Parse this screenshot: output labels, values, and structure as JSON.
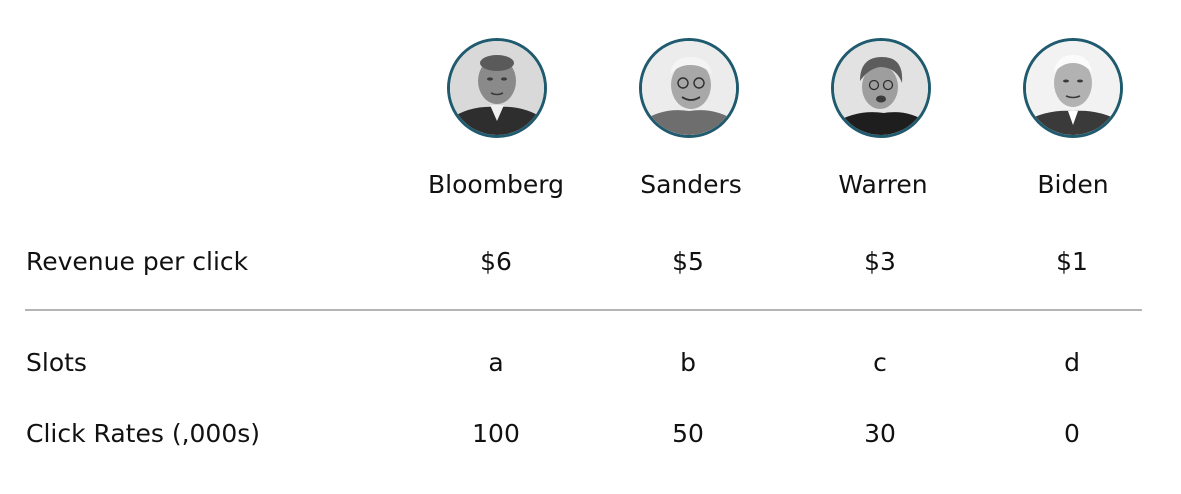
{
  "candidates": [
    {
      "name": "Bloomberg",
      "revenue": "$6",
      "slot": "a",
      "click_rate": "100",
      "avatar_icon": "portrait-icon"
    },
    {
      "name": "Sanders",
      "revenue": "$5",
      "slot": "b",
      "click_rate": "50",
      "avatar_icon": "portrait-icon"
    },
    {
      "name": "Warren",
      "revenue": "$3",
      "slot": "c",
      "click_rate": "30",
      "avatar_icon": "portrait-icon"
    },
    {
      "name": "Biden",
      "revenue": "$1",
      "slot": "d",
      "click_rate": "0",
      "avatar_icon": "portrait-icon"
    }
  ],
  "rows": {
    "revenue_label": "Revenue per click",
    "slots_label": "Slots",
    "click_rates_label": "Click Rates (,000s)"
  },
  "colors": {
    "avatar_ring": "#1f5a6e",
    "divider": "#b5b5b5",
    "text": "#111111"
  }
}
